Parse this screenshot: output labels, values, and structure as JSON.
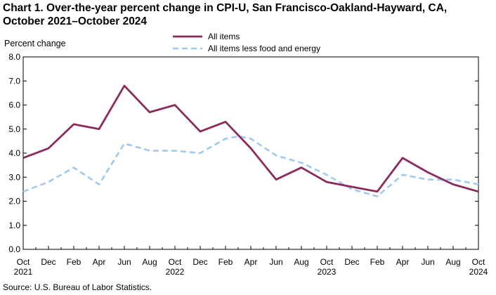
{
  "chart_data": {
    "type": "line",
    "title_line1": "Chart 1. Over-the-year percent change in CPI-U, San Francisco-Oakland-Hayward, CA,",
    "title_line2": "October 2021–October 2024",
    "ylabel": "Percent change",
    "source": "Source: U.S. Bureau of Labor Statistics.",
    "ylim": [
      0,
      8
    ],
    "yticks": [
      0.0,
      1.0,
      2.0,
      3.0,
      4.0,
      5.0,
      6.0,
      7.0,
      8.0
    ],
    "ytick_labels": [
      "0.0",
      "1.0",
      "2.0",
      "3.0",
      "4.0",
      "5.0",
      "6.0",
      "7.0",
      "8.0"
    ],
    "x_ticks": [
      {
        "index": 0,
        "label": "Oct",
        "year": "2021"
      },
      {
        "index": 2,
        "label": "Dec",
        "year": ""
      },
      {
        "index": 4,
        "label": "Feb",
        "year": ""
      },
      {
        "index": 6,
        "label": "Apr",
        "year": ""
      },
      {
        "index": 8,
        "label": "Jun",
        "year": ""
      },
      {
        "index": 10,
        "label": "Aug",
        "year": ""
      },
      {
        "index": 12,
        "label": "Oct",
        "year": "2022"
      },
      {
        "index": 14,
        "label": "Dec",
        "year": ""
      },
      {
        "index": 16,
        "label": "Feb",
        "year": ""
      },
      {
        "index": 18,
        "label": "Apr",
        "year": ""
      },
      {
        "index": 20,
        "label": "Jun",
        "year": ""
      },
      {
        "index": 22,
        "label": "Aug",
        "year": ""
      },
      {
        "index": 24,
        "label": "Oct",
        "year": "2023"
      },
      {
        "index": 26,
        "label": "Dec",
        "year": ""
      },
      {
        "index": 28,
        "label": "Feb",
        "year": ""
      },
      {
        "index": 30,
        "label": "Apr",
        "year": ""
      },
      {
        "index": 32,
        "label": "Jun",
        "year": ""
      },
      {
        "index": 34,
        "label": "Aug",
        "year": ""
      },
      {
        "index": 36,
        "label": "Oct",
        "year": "2024"
      }
    ],
    "series": [
      {
        "name": "All items",
        "color": "#8b2b5c",
        "style": "solid",
        "points": [
          [
            0,
            3.8
          ],
          [
            2,
            4.2
          ],
          [
            4,
            5.2
          ],
          [
            6,
            5.0
          ],
          [
            8,
            6.8
          ],
          [
            10,
            5.7
          ],
          [
            12,
            6.0
          ],
          [
            14,
            4.9
          ],
          [
            16,
            5.3
          ],
          [
            18,
            4.2
          ],
          [
            20,
            2.9
          ],
          [
            22,
            3.4
          ],
          [
            24,
            2.8
          ],
          [
            26,
            2.6
          ],
          [
            28,
            2.4
          ],
          [
            30,
            3.8
          ],
          [
            32,
            3.2
          ],
          [
            34,
            2.7
          ],
          [
            36,
            2.4
          ]
        ]
      },
      {
        "name": "All items less food and energy",
        "color": "#9fcaf0",
        "style": "dashed",
        "points": [
          [
            0,
            2.4
          ],
          [
            2,
            2.8
          ],
          [
            4,
            3.4
          ],
          [
            6,
            2.7
          ],
          [
            8,
            4.4
          ],
          [
            10,
            4.1
          ],
          [
            12,
            4.1
          ],
          [
            14,
            4.0
          ],
          [
            16,
            4.6
          ],
          [
            17,
            4.7
          ],
          [
            18,
            4.6
          ],
          [
            20,
            3.9
          ],
          [
            22,
            3.6
          ],
          [
            24,
            3.1
          ],
          [
            26,
            2.5
          ],
          [
            28,
            2.2
          ],
          [
            30,
            3.1
          ],
          [
            32,
            2.9
          ],
          [
            34,
            2.9
          ],
          [
            36,
            2.7
          ]
        ]
      }
    ],
    "legend_position": "top-center"
  }
}
